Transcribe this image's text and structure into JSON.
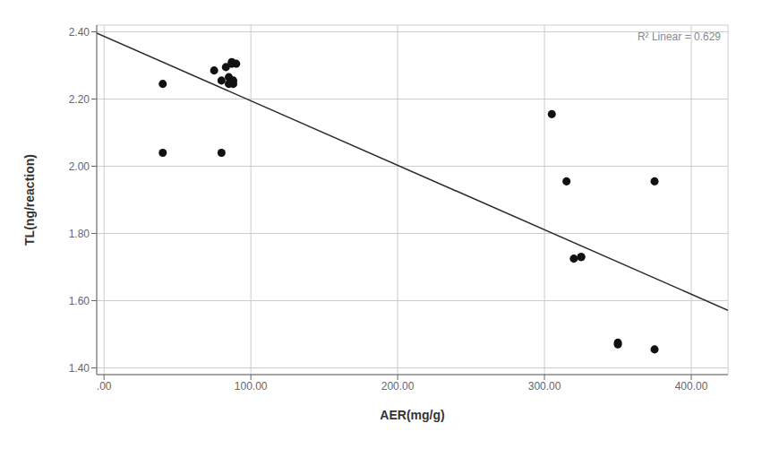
{
  "chart_data": {
    "type": "scatter",
    "xlabel": "AER(mg/g)",
    "ylabel": "TL(ng/reaction)",
    "annotation": "R² Linear = 0.629",
    "series": [
      {
        "type": "scatter",
        "color": "#111111",
        "x": [
          40,
          40,
          75,
          80,
          80,
          83,
          85,
          85,
          87,
          87,
          88,
          88,
          90,
          305,
          315,
          320,
          325,
          325,
          350,
          350,
          375,
          375
        ],
        "values": [
          2.245,
          2.04,
          2.285,
          2.04,
          2.255,
          2.295,
          2.245,
          2.265,
          2.305,
          2.31,
          2.255,
          2.245,
          2.305,
          2.155,
          1.955,
          1.725,
          1.73,
          1.73,
          1.47,
          1.475,
          1.955,
          1.455
        ]
      },
      {
        "type": "line",
        "color": "#2b2b2b",
        "x": [
          -5,
          425
        ],
        "values": [
          2.39621,
          1.57131
        ]
      }
    ],
    "xlim": [
      -5,
      425
    ],
    "ylim": [
      1.38,
      2.42
    ],
    "xticks": [
      {
        "value": 0,
        "label": ".00"
      },
      {
        "value": 100,
        "label": "100.00"
      },
      {
        "value": 200,
        "label": "200.00"
      },
      {
        "value": 300,
        "label": "300.00"
      },
      {
        "value": 400,
        "label": "400.00"
      }
    ],
    "yticks": [
      {
        "value": 1.4,
        "label": "1.40"
      },
      {
        "value": 1.6,
        "label": "1.60"
      },
      {
        "value": 1.8,
        "label": "1.80"
      },
      {
        "value": 2.0,
        "label": "2.00"
      },
      {
        "value": 2.2,
        "label": "2.20"
      },
      {
        "value": 2.4,
        "label": "2.40"
      }
    ],
    "grid": true
  }
}
